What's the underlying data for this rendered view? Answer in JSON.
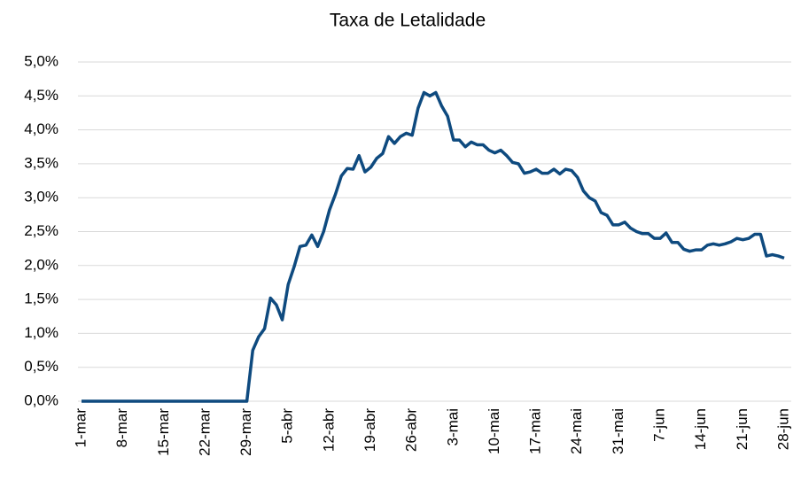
{
  "chart_data": {
    "type": "line",
    "title": "Taxa de Letalidade",
    "categories": [
      "1-mar",
      null,
      null,
      null,
      null,
      null,
      null,
      "8-mar",
      null,
      null,
      null,
      null,
      null,
      null,
      "15-mar",
      null,
      null,
      null,
      null,
      null,
      null,
      "22-mar",
      null,
      null,
      null,
      null,
      null,
      null,
      "29-mar",
      null,
      null,
      null,
      null,
      null,
      null,
      "5-abr",
      null,
      null,
      null,
      null,
      null,
      null,
      "12-abr",
      null,
      null,
      null,
      null,
      null,
      null,
      "19-abr",
      null,
      null,
      null,
      null,
      null,
      null,
      "26-abr",
      null,
      null,
      null,
      null,
      null,
      null,
      "3-mai",
      null,
      null,
      null,
      null,
      null,
      null,
      "10-mai",
      null,
      null,
      null,
      null,
      null,
      null,
      "17-mai",
      null,
      null,
      null,
      null,
      null,
      null,
      "24-mai",
      null,
      null,
      null,
      null,
      null,
      null,
      "31-mai",
      null,
      null,
      null,
      null,
      null,
      null,
      "7-jun",
      null,
      null,
      null,
      null,
      null,
      null,
      "14-jun",
      null,
      null,
      null,
      null,
      null,
      null,
      "21-jun",
      null,
      null,
      null,
      null,
      null,
      null,
      "28-jun"
    ],
    "values": [
      0,
      0,
      0,
      0,
      0,
      0,
      0,
      0,
      0,
      0,
      0,
      0,
      0,
      0,
      0,
      0,
      0,
      0,
      0,
      0,
      0,
      0,
      0,
      0,
      0,
      0,
      0,
      0,
      0,
      0.75,
      0.95,
      1.07,
      1.52,
      1.42,
      1.2,
      1.72,
      1.98,
      2.28,
      2.3,
      2.45,
      2.28,
      2.5,
      2.82,
      3.05,
      3.32,
      3.43,
      3.42,
      3.62,
      3.38,
      3.45,
      3.58,
      3.65,
      3.9,
      3.8,
      3.9,
      3.95,
      3.92,
      4.32,
      4.55,
      4.5,
      4.55,
      4.35,
      4.2,
      3.85,
      3.85,
      3.75,
      3.82,
      3.78,
      3.78,
      3.7,
      3.66,
      3.7,
      3.62,
      3.52,
      3.5,
      3.36,
      3.38,
      3.42,
      3.36,
      3.36,
      3.42,
      3.35,
      3.42,
      3.4,
      3.3,
      3.1,
      3.0,
      2.95,
      2.78,
      2.74,
      2.6,
      2.6,
      2.64,
      2.55,
      2.5,
      2.47,
      2.47,
      2.4,
      2.4,
      2.48,
      2.34,
      2.34,
      2.24,
      2.21,
      2.23,
      2.23,
      2.3,
      2.32,
      2.3,
      2.32,
      2.35,
      2.4,
      2.38,
      2.4,
      2.46,
      2.46,
      2.14,
      2.16,
      2.14,
      2.11
    ],
    "color": "#0e4a7f",
    "ylim": [
      0,
      5
    ],
    "yticks": [
      {
        "value": 0,
        "label": "0,0%"
      },
      {
        "value": 0.5,
        "label": "0,5%"
      },
      {
        "value": 1,
        "label": "1,0%"
      },
      {
        "value": 1.5,
        "label": "1,5%"
      },
      {
        "value": 2,
        "label": "2,0%"
      },
      {
        "value": 2.5,
        "label": "2,5%"
      },
      {
        "value": 3,
        "label": "3,0%"
      },
      {
        "value": 3.5,
        "label": "3,5%"
      },
      {
        "value": 4,
        "label": "4,0%"
      },
      {
        "value": 4.5,
        "label": "4,5%"
      },
      {
        "value": 5,
        "label": "5,0%"
      }
    ],
    "grid": true
  }
}
